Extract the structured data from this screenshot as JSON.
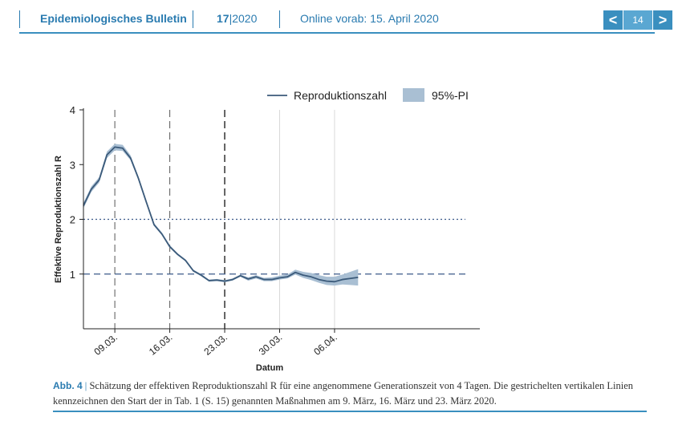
{
  "header": {
    "journal": "Epidemiologisches Bulletin",
    "issue_no": "17",
    "issue_year": "2020",
    "online": "Online vorab: 15. April 2020",
    "page": "14",
    "prev_glyph": "<",
    "next_glyph": ">"
  },
  "colors": {
    "accent": "#3a8fbf",
    "line": "#3b5a7a",
    "band": "#a9bfd3"
  },
  "caption": {
    "label": "Abb. 4",
    "separator": "|",
    "text": "Schätzung der effektiven Reproduktionszahl R für eine angenommene Generationszeit von 4 Tagen. Die gestrichelten vertikalen Linien kennzeichnen den Start der in Tab. 1 (S. 15) genannten Maßnahmen am 9. März, 16. März und 23. März 2020."
  },
  "chart_data": {
    "type": "line",
    "xlabel": "Datum",
    "ylabel": "Effektive Reproduktionszahl R",
    "ylim": [
      0,
      4
    ],
    "yticks": [
      1,
      2,
      3,
      4
    ],
    "x_dates": [
      "05.03.",
      "06.03.",
      "07.03.",
      "08.03.",
      "09.03.",
      "10.03.",
      "11.03.",
      "12.03.",
      "13.03.",
      "14.03.",
      "15.03.",
      "16.03.",
      "17.03.",
      "18.03.",
      "19.03.",
      "20.03.",
      "21.03.",
      "22.03.",
      "23.03.",
      "24.03.",
      "25.03.",
      "26.03.",
      "27.03.",
      "28.03.",
      "29.03.",
      "30.03.",
      "31.03.",
      "01.04.",
      "02.04.",
      "03.04.",
      "04.04.",
      "05.04.",
      "06.04.",
      "07.04.",
      "08.04.",
      "09.04."
    ],
    "xtick_labels": [
      "09.03.",
      "16.03.",
      "23.03.",
      "30.03.",
      "06.04."
    ],
    "legend": {
      "position": "top-right",
      "entries": [
        "Reproduktionszahl",
        "95%-PI"
      ]
    },
    "series": [
      {
        "name": "Reproduktionszahl",
        "values": [
          2.25,
          2.55,
          2.72,
          3.18,
          3.32,
          3.3,
          3.12,
          2.75,
          2.32,
          1.9,
          1.73,
          1.5,
          1.36,
          1.25,
          1.06,
          0.98,
          0.88,
          0.89,
          0.87,
          0.9,
          0.97,
          0.91,
          0.95,
          0.9,
          0.9,
          0.93,
          0.95,
          1.03,
          0.98,
          0.95,
          0.9,
          0.87,
          0.86,
          0.9,
          0.92,
          0.94
        ],
        "lower": [
          2.2,
          2.5,
          2.67,
          3.12,
          3.26,
          3.25,
          3.08,
          2.72,
          2.3,
          1.88,
          1.71,
          1.48,
          1.34,
          1.23,
          1.04,
          0.96,
          0.86,
          0.87,
          0.85,
          0.88,
          0.95,
          0.88,
          0.92,
          0.87,
          0.87,
          0.9,
          0.92,
          0.99,
          0.93,
          0.89,
          0.84,
          0.8,
          0.79,
          0.81,
          0.8,
          0.79
        ],
        "upper": [
          2.3,
          2.6,
          2.77,
          3.24,
          3.38,
          3.36,
          3.17,
          2.79,
          2.35,
          1.93,
          1.76,
          1.53,
          1.38,
          1.27,
          1.08,
          1.0,
          0.9,
          0.91,
          0.89,
          0.92,
          0.99,
          0.94,
          0.98,
          0.93,
          0.94,
          0.97,
          0.99,
          1.08,
          1.04,
          1.02,
          0.98,
          0.95,
          0.95,
          0.99,
          1.04,
          1.09
        ]
      }
    ],
    "hlines": [
      {
        "y": 2,
        "style": "dotted"
      },
      {
        "y": 1,
        "style": "dashed"
      }
    ],
    "vlines_dashed": [
      "09.03.",
      "16.03.",
      "23.03."
    ],
    "vlines_grid": [
      "30.03.",
      "06.04."
    ],
    "grid": false
  }
}
